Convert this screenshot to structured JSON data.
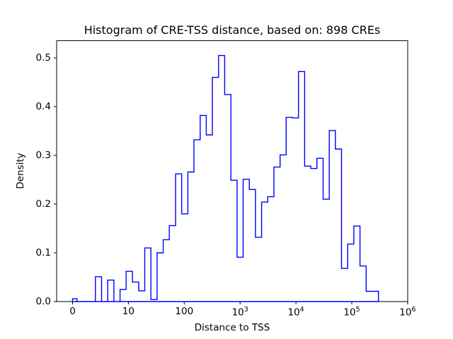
{
  "title": "Histogram of CRE-TSS distance, based on: 898 CREs",
  "axes": {
    "xlabel": "Distance to TSS",
    "ylabel": "Density",
    "x_scale": "symlog",
    "x_linthresh": 10,
    "x_ticks": [
      {
        "t": 0,
        "label": "0"
      },
      {
        "t": 1,
        "label": "10"
      },
      {
        "t": 2,
        "label": "100"
      },
      {
        "t": 3,
        "base": "10",
        "exp": "3"
      },
      {
        "t": 4,
        "base": "10",
        "exp": "4"
      },
      {
        "t": 5,
        "base": "10",
        "exp": "5"
      },
      {
        "t": 6,
        "base": "10",
        "exp": "6"
      }
    ],
    "y_ticks": [
      {
        "v": 0.0,
        "label": "0.0"
      },
      {
        "v": 0.1,
        "label": "0.1"
      },
      {
        "v": 0.2,
        "label": "0.2"
      },
      {
        "v": 0.3,
        "label": "0.3"
      },
      {
        "v": 0.4,
        "label": "0.4"
      },
      {
        "v": 0.5,
        "label": "0.5"
      }
    ],
    "ylim": [
      0,
      0.535
    ]
  },
  "chart_data": {
    "type": "bar",
    "subtype": "step-histogram",
    "title": "Histogram of CRE-TSS distance, based on: 898 CREs",
    "xlabel": "Distance to TSS",
    "ylabel": "Density",
    "n_samples": 898,
    "x_scale": "symlog, linear below 10, log-spaced bins (~0.11 decades per bin)",
    "line_color": "#0000ff",
    "bin_edges": [
      0,
      0.8,
      1.9,
      3.0,
      4.1,
      5.2,
      6.3,
      7.4,
      8.5,
      9.6,
      11.8,
      15.3,
      19.6,
      25.3,
      32.6,
      42,
      54,
      70,
      90,
      116,
      149,
      193,
      248,
      319,
      412,
      530,
      684,
      881,
      1135,
      1462,
      1884,
      2428,
      3128,
      4031,
      5194,
      6693,
      8625,
      11113,
      14320,
      18452,
      23777,
      30639,
      39481,
      50876,
      65558,
      84477,
      108855,
      140266,
      180742,
      232899,
      300105
    ],
    "densities": [
      0.006,
      0,
      0,
      0,
      0.051,
      0,
      0.044,
      0,
      0.025,
      0.062,
      0.04,
      0.022,
      0.11,
      0.004,
      0.1,
      0.127,
      0.156,
      0.262,
      0.18,
      0.266,
      0.332,
      0.382,
      0.342,
      0.46,
      0.505,
      0.425,
      0.249,
      0.091,
      0.251,
      0.23,
      0.132,
      0.204,
      0.215,
      0.276,
      0.301,
      0.378,
      0.377,
      0.472,
      0.278,
      0.273,
      0.294,
      0.21,
      0.351,
      0.313,
      0.068,
      0.118,
      0.155,
      0.073,
      0.021,
      0.021
    ]
  }
}
